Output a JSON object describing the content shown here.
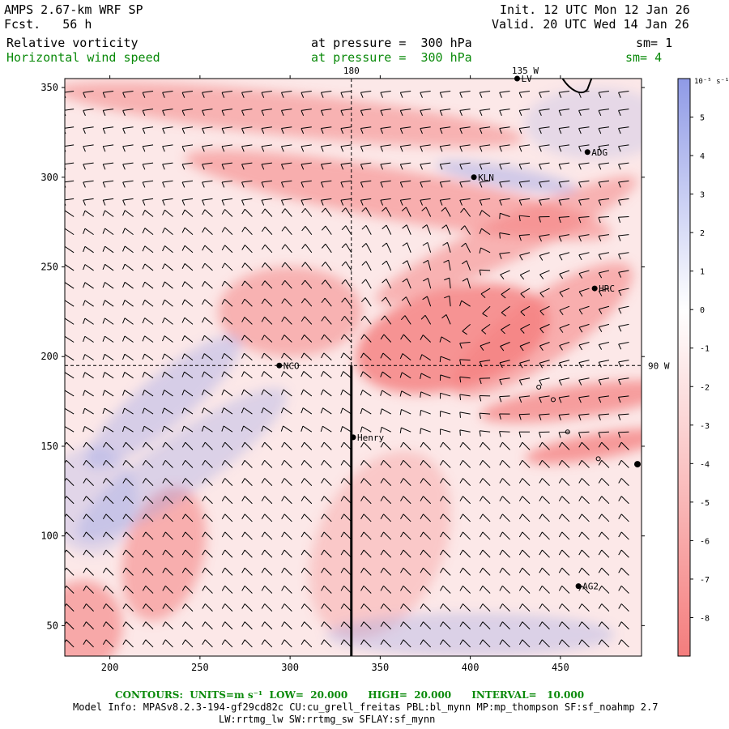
{
  "header": {
    "model": "AMPS 2.67-km WRF SP",
    "fcst": "Fcst.   56 h",
    "init": "Init. 12 UTC Mon 12 Jan 26",
    "valid": "Valid. 20 UTC Wed 14 Jan 26",
    "field1": "Relative vorticity",
    "field1_level": "at pressure =  300 hPa",
    "field1_sm": "sm= 1",
    "field2": "Horizontal wind speed",
    "field2_level": "at pressure =  300 hPa",
    "field2_sm": "sm= 4"
  },
  "chart_data": {
    "type": "heatmap",
    "title": "Relative vorticity / Horizontal wind speed at 300 hPa",
    "x_ticks": [
      200,
      250,
      300,
      350,
      400,
      450
    ],
    "y_ticks": [
      50,
      100,
      150,
      200,
      250,
      300,
      350
    ],
    "xlim": [
      175,
      495
    ],
    "ylim": [
      33,
      355
    ],
    "meridian_labels": {
      "top_180": "180",
      "top_135w": "135 W",
      "right_90w": "90 W"
    },
    "meridian_180_x": 334,
    "parallel_90w_y": 195,
    "section_line": {
      "x": 334,
      "y_from": 33,
      "y_to": 195
    },
    "stations": [
      {
        "name": "ADG",
        "x": 465,
        "y": 314
      },
      {
        "name": "KLN",
        "x": 402,
        "y": 300
      },
      {
        "name": "HRC",
        "x": 469,
        "y": 238
      },
      {
        "name": "NCO",
        "x": 294,
        "y": 195
      },
      {
        "name": "Henry",
        "x": 335,
        "y": 155
      },
      {
        "name": "AG2",
        "x": 460,
        "y": 72
      },
      {
        "name": "LV",
        "x": 426,
        "y": 355
      }
    ],
    "unlabeled_markers": [
      {
        "x": 495,
        "y": 140,
        "kind": "dot"
      },
      {
        "x": 438,
        "y": 183,
        "kind": "circle"
      },
      {
        "x": 446,
        "y": 176,
        "kind": "circle"
      },
      {
        "x": 454,
        "y": 158,
        "kind": "circle"
      },
      {
        "x": 471,
        "y": 143,
        "kind": "circle"
      }
    ],
    "colorbar": {
      "unit_label": "10⁻⁵ s⁻¹",
      "ticks": [
        "5",
        "4",
        "3",
        "2",
        "1",
        "0",
        "-1",
        "-2",
        "-3",
        "-4",
        "-5",
        "-6",
        "-7",
        "-8"
      ],
      "tick_values": [
        5,
        4,
        3,
        2,
        1,
        0,
        -1,
        -2,
        -3,
        -4,
        -5,
        -6,
        -7,
        -8
      ],
      "range": [
        -9,
        6
      ],
      "positive_color": "#8f9ae6",
      "zero_color": "#ffffff",
      "negative_color": "#f47d7d"
    },
    "vorticity_features": [
      {
        "kind": "neg",
        "x": 390,
        "y": 210,
        "rx": 55,
        "ry": 28,
        "rot": -15,
        "strength": 0.8
      },
      {
        "kind": "neg",
        "x": 440,
        "y": 215,
        "rx": 60,
        "ry": 18,
        "rot": -35,
        "strength": 0.55
      },
      {
        "kind": "neg",
        "x": 460,
        "y": 175,
        "rx": 55,
        "ry": 9,
        "rot": -8,
        "strength": 0.7
      },
      {
        "kind": "neg",
        "x": 470,
        "y": 150,
        "rx": 40,
        "ry": 7,
        "rot": -10,
        "strength": 0.75
      },
      {
        "kind": "neg",
        "x": 300,
        "y": 225,
        "rx": 40,
        "ry": 25,
        "rot": 0,
        "strength": 0.5
      },
      {
        "kind": "neg",
        "x": 360,
        "y": 290,
        "rx": 120,
        "ry": 14,
        "rot": 10,
        "strength": 0.55
      },
      {
        "kind": "neg",
        "x": 300,
        "y": 335,
        "rx": 130,
        "ry": 12,
        "rot": 6,
        "strength": 0.5
      },
      {
        "kind": "neg",
        "x": 420,
        "y": 265,
        "rx": 80,
        "ry": 12,
        "rot": -25,
        "strength": 0.5
      },
      {
        "kind": "neg",
        "x": 230,
        "y": 90,
        "rx": 22,
        "ry": 38,
        "rot": 15,
        "strength": 0.55
      },
      {
        "kind": "neg",
        "x": 185,
        "y": 50,
        "rx": 22,
        "ry": 25,
        "rot": 0,
        "strength": 0.6
      },
      {
        "kind": "neg",
        "x": 350,
        "y": 95,
        "rx": 35,
        "ry": 55,
        "rot": 25,
        "strength": 0.3
      },
      {
        "kind": "pos",
        "x": 230,
        "y": 175,
        "rx": 55,
        "ry": 14,
        "rot": -40,
        "strength": 0.35
      },
      {
        "kind": "pos",
        "x": 240,
        "y": 140,
        "rx": 70,
        "ry": 16,
        "rot": -35,
        "strength": 0.3
      },
      {
        "kind": "pos",
        "x": 400,
        "y": 45,
        "rx": 80,
        "ry": 12,
        "rot": 0,
        "strength": 0.3
      },
      {
        "kind": "pos",
        "x": 420,
        "y": 300,
        "rx": 40,
        "ry": 6,
        "rot": 10,
        "strength": 0.4
      },
      {
        "kind": "pos",
        "x": 470,
        "y": 330,
        "rx": 40,
        "ry": 20,
        "rot": 0,
        "strength": 0.2
      },
      {
        "kind": "pos",
        "x": 190,
        "y": 120,
        "rx": 25,
        "ry": 30,
        "rot": 0,
        "strength": 0.25
      }
    ],
    "barb_grid": {
      "x_start": 180,
      "x_step": 11,
      "y_start": 38,
      "y_step": 10
    }
  },
  "footer": {
    "contours": "CONTOURS:  UNITS=m s⁻¹  LOW=  20.000      HIGH=  20.000      INTERVAL=   10.000",
    "model_info": "Model Info: MPASv8.2.3-194-gf29cd82c CU:cu_grell_freitas PBL:bl_mynn MP:mp_thompson SF:sf_noahmp 2.7",
    "model_info2": "LW:rrtmg_lw SW:rrtmg_sw SFLAY:sf_mynn"
  }
}
